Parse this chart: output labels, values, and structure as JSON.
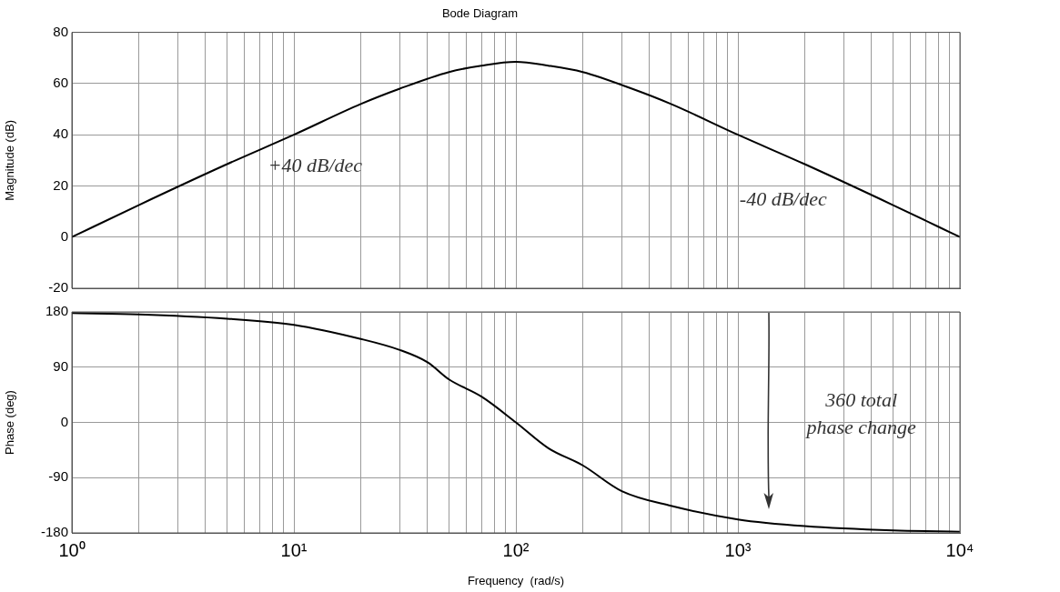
{
  "chart_data": [
    {
      "type": "line",
      "title": "Bode Diagram",
      "ylabel": "Magnitude (dB)",
      "x": [
        1,
        2,
        5,
        10,
        20,
        30,
        50,
        70,
        100,
        140,
        200,
        333,
        500,
        1000,
        2000,
        5000,
        10000
      ],
      "series": [
        {
          "color": "#000000",
          "values": [
            0,
            12.5,
            28.5,
            40,
            52,
            58,
            64.5,
            67,
            68.5,
            67,
            64.5,
            58,
            52,
            40,
            28.5,
            12.5,
            0
          ]
        }
      ],
      "log": "x",
      "xlim": [
        1,
        10000
      ],
      "xticks": [
        {
          "value": 1,
          "label": null
        },
        {
          "value": 2,
          "label": null
        },
        {
          "value": 3,
          "label": null
        },
        {
          "value": 4,
          "label": null
        },
        {
          "value": 5,
          "label": null
        },
        {
          "value": 6,
          "label": null
        },
        {
          "value": 7,
          "label": null
        },
        {
          "value": 8,
          "label": null
        },
        {
          "value": 9,
          "label": null
        },
        {
          "value": 10,
          "label": null
        },
        {
          "value": 20,
          "label": null
        },
        {
          "value": 30,
          "label": null
        },
        {
          "value": 40,
          "label": null
        },
        {
          "value": 50,
          "label": null
        },
        {
          "value": 60,
          "label": null
        },
        {
          "value": 70,
          "label": null
        },
        {
          "value": 80,
          "label": null
        },
        {
          "value": 90,
          "label": null
        },
        {
          "value": 100,
          "label": null
        },
        {
          "value": 200,
          "label": null
        },
        {
          "value": 300,
          "label": null
        },
        {
          "value": 400,
          "label": null
        },
        {
          "value": 500,
          "label": null
        },
        {
          "value": 600,
          "label": null
        },
        {
          "value": 700,
          "label": null
        },
        {
          "value": 800,
          "label": null
        },
        {
          "value": 900,
          "label": null
        },
        {
          "value": 1000,
          "label": null
        },
        {
          "value": 2000,
          "label": null
        },
        {
          "value": 3000,
          "label": null
        },
        {
          "value": 4000,
          "label": null
        },
        {
          "value": 5000,
          "label": null
        },
        {
          "value": 6000,
          "label": null
        },
        {
          "value": 7000,
          "label": null
        },
        {
          "value": 8000,
          "label": null
        },
        {
          "value": 9000,
          "label": null
        },
        {
          "value": 10000,
          "label": null
        }
      ],
      "ylim": [
        -20,
        80
      ],
      "yticks": [
        -20,
        0,
        20,
        40,
        60,
        80
      ],
      "tick_labels": "y",
      "grid": true,
      "legend": false,
      "marker": "none",
      "line_style": "solid",
      "annotations": [
        "+40 dB/dec",
        "-40 dB/dec"
      ]
    },
    {
      "type": "line",
      "xlabel": "Frequency  (rad/s)",
      "ylabel": "Phase (deg)",
      "x": [
        1,
        2,
        5,
        10,
        20,
        30,
        40,
        50,
        70,
        100,
        140,
        200,
        300,
        500,
        1000,
        2000,
        5000,
        10000
      ],
      "series": [
        {
          "color": "#000000",
          "values": [
            178,
            176,
            169,
            159,
            136,
            118,
            98,
            70,
            42,
            0,
            -42,
            -70,
            -112,
            -136,
            -158,
            -169,
            -176,
            -178
          ]
        }
      ],
      "log": "x",
      "xlim": [
        1,
        10000
      ],
      "xticks": [
        {
          "value": 1,
          "label": "10⁰"
        },
        {
          "value": 2,
          "label": null
        },
        {
          "value": 3,
          "label": null
        },
        {
          "value": 4,
          "label": null
        },
        {
          "value": 5,
          "label": null
        },
        {
          "value": 6,
          "label": null
        },
        {
          "value": 7,
          "label": null
        },
        {
          "value": 8,
          "label": null
        },
        {
          "value": 9,
          "label": null
        },
        {
          "value": 10,
          "label": "10¹"
        },
        {
          "value": 20,
          "label": null
        },
        {
          "value": 30,
          "label": null
        },
        {
          "value": 40,
          "label": null
        },
        {
          "value": 50,
          "label": null
        },
        {
          "value": 60,
          "label": null
        },
        {
          "value": 70,
          "label": null
        },
        {
          "value": 80,
          "label": null
        },
        {
          "value": 90,
          "label": null
        },
        {
          "value": 100,
          "label": "10²"
        },
        {
          "value": 200,
          "label": null
        },
        {
          "value": 300,
          "label": null
        },
        {
          "value": 400,
          "label": null
        },
        {
          "value": 500,
          "label": null
        },
        {
          "value": 600,
          "label": null
        },
        {
          "value": 700,
          "label": null
        },
        {
          "value": 800,
          "label": null
        },
        {
          "value": 900,
          "label": null
        },
        {
          "value": 1000,
          "label": "10³"
        },
        {
          "value": 2000,
          "label": null
        },
        {
          "value": 3000,
          "label": null
        },
        {
          "value": 4000,
          "label": null
        },
        {
          "value": 5000,
          "label": null
        },
        {
          "value": 6000,
          "label": null
        },
        {
          "value": 7000,
          "label": null
        },
        {
          "value": 8000,
          "label": null
        },
        {
          "value": 9000,
          "label": null
        },
        {
          "value": 10000,
          "label": "10⁴"
        }
      ],
      "ylim": [
        -180,
        180
      ],
      "yticks": [
        -180,
        -90,
        0,
        90,
        180
      ],
      "grid": true,
      "legend": false,
      "marker": "none",
      "line_style": "solid",
      "annotations": [
        "360 total phase change"
      ]
    }
  ]
}
